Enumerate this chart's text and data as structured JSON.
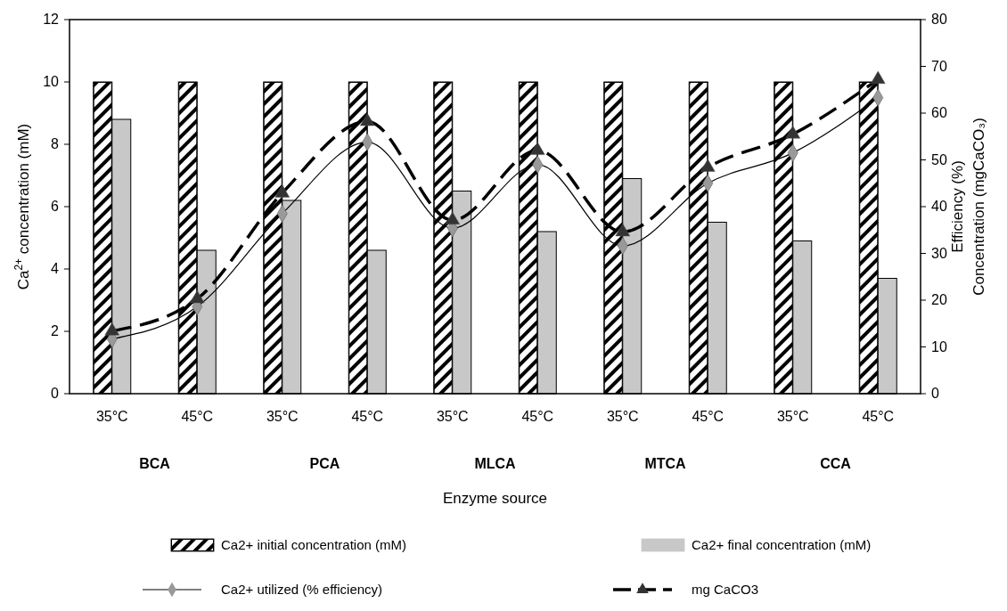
{
  "chart_data": {
    "type": "bar",
    "categories": [
      "35°C",
      "45°C",
      "35°C",
      "45°C",
      "35°C",
      "45°C",
      "35°C",
      "45°C",
      "35°C",
      "45°C"
    ],
    "annotations": [
      "BCA",
      "PCA",
      "MLCA",
      "MTCA",
      "CCA"
    ],
    "xlabel": "Enzyme source",
    "ylabel": "Ca$^{2+}$ concentration (mM)",
    "y2label": "Efficiency (%)\nConcentration (mgCaCO₃)",
    "ylim": [
      0,
      12
    ],
    "yticks": [
      0,
      2,
      4,
      6,
      8,
      10,
      12
    ],
    "y2lim": [
      0,
      80
    ],
    "y2ticks": [
      0,
      10,
      20,
      30,
      40,
      50,
      60,
      70,
      80
    ],
    "legend": "bottom",
    "grid": false,
    "series": [
      {
        "name": "Ca2+ initial concentration (mM)",
        "color": "#000000",
        "values": [
          10,
          10,
          10,
          10,
          10,
          10,
          10,
          10,
          10,
          10
        ]
      },
      {
        "name": "Ca2+ final concentration (mM)",
        "color": "#c8c8c8",
        "values": [
          8.8,
          4.6,
          6.2,
          4.6,
          6.5,
          5.2,
          6.9,
          5.5,
          4.9,
          3.7
        ]
      },
      {
        "name": "Ca2+ utilized (% efficiency)",
        "type": "line",
        "axis": "y2",
        "color": "#000000",
        "marker": "diamond",
        "line_style": "solid",
        "values": [
          11.7,
          18.6,
          38.5,
          53.8,
          35.4,
          49,
          31.6,
          45,
          51.5,
          63.3
        ]
      },
      {
        "name": "mg CaCO3",
        "type": "line",
        "axis": "y2",
        "color": "#000000",
        "marker": "triangle",
        "line_style": "dashed",
        "values": [
          13.4,
          20.3,
          42.9,
          58.2,
          37.1,
          52,
          34.6,
          48.4,
          55.5,
          67.2
        ]
      }
    ]
  }
}
